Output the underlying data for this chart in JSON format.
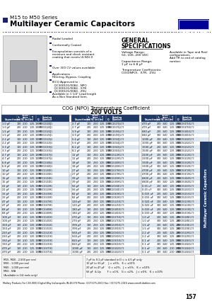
{
  "title_series": "M15 to M50 Series",
  "title_main": "Multilayer Ceramic Capacitors",
  "brand": "MALLORY",
  "bg_color": "#ffffff",
  "header_blue": "#000080",
  "light_blue_row": "#dce6f1",
  "table_header_blue": "#1f3864",
  "section_title": "COG (NPO) Temperature Coefficient",
  "section_subtitle": "200 VOLTS",
  "bullet_color": "#1f1f5f",
  "page_num": "157",
  "side_tab": "Multilayer Ceramic Capacitors",
  "footer_company": "Mallory Products For C38-9001 Digital Way Indianapolis IN 46278 Phone: (317)275-2000 Fax: (317)275-2010 www.cornell-dublier.com",
  "footer_notes_left": [
    "M15, M20 - 2,500 per reel",
    "M30 - 1,000 per reel",
    "M40 - 1,000 per reel",
    "M50 - N/A",
    "(Available in 1/4 reels only)"
  ],
  "footer_notes_right": [
    "7 pF to 9.1 pF standard in D = ± 4.5 pF only",
    "10 pF to 33 pF     J = ±5%,   K = ±10%",
    "20 pF to 47 pF     G = ±2%,   J = ±5%,   K = ±10%",
    "56 pF  & Up        F = ±1%,   G = ±2%,   J = ±5%,   K = ±10%"
  ],
  "col_headers": [
    "Capacitance",
    "L\n(m)",
    "Thickness\nW\n(m)",
    "T\n(m)",
    "Q",
    "Catalog\nNumber"
  ],
  "group1_data": [
    [
      "1.0 pF",
      "100",
      "2.10",
      "1.25",
      "1000",
      "M15C1G100J1"
    ],
    [
      "1.0 pF",
      "200",
      "2.10",
      "1.25",
      "1000",
      "M20C1G100J1"
    ],
    [
      "1.5 pF",
      "100",
      "2.10",
      "1.25",
      "1000",
      "M15C1G150J1"
    ],
    [
      "1.5 pF",
      "200",
      "2.10",
      "1.25",
      "1000",
      "M20C1G150J1"
    ],
    [
      "2.2 pF",
      "100",
      "2.10",
      "1.25",
      "1000",
      "M15C1G220J1"
    ],
    [
      "2.2 pF",
      "200",
      "2.10",
      "1.25",
      "1000",
      "M20C1G220J1"
    ],
    [
      "3.3 pF",
      "100",
      "2.10",
      "1.25",
      "1000",
      "M15C1G330J1"
    ],
    [
      "3.3 pF",
      "200",
      "2.10",
      "1.25",
      "1000",
      "M20C1G330J1"
    ],
    [
      "4.7 pF",
      "100",
      "2.10",
      "1.25",
      "1000",
      "M15C1G470J1"
    ],
    [
      "4.7 pF",
      "200",
      "2.10",
      "1.25",
      "1000",
      "M20C1G470J1"
    ],
    [
      "6.8 pF",
      "100",
      "2.10",
      "1.25",
      "1000",
      "M15C1G680J1"
    ],
    [
      "6.8 pF",
      "200",
      "2.10",
      "1.25",
      "1000",
      "M20C1G680J1"
    ],
    [
      "10 pF",
      "100",
      "2.10",
      "1.25",
      "1000",
      "M15C1G100K1"
    ],
    [
      "10 pF",
      "200",
      "2.10",
      "1.25",
      "1000",
      "M20C1G100K1"
    ],
    [
      "15 pF",
      "100",
      "2.10",
      "1.25",
      "1000",
      "M15C1G150K1"
    ],
    [
      "15 pF",
      "200",
      "2.10",
      "1.25",
      "1000",
      "M20C1G150K1"
    ],
    [
      "22 pF",
      "100",
      "2.10",
      "1.25",
      "1000",
      "M15C1G220K1"
    ],
    [
      "22 pF",
      "200",
      "2.10",
      "1.25",
      "1000",
      "M20C1G220K1"
    ],
    [
      "33 pF",
      "100",
      "2.10",
      "1.25",
      "1000",
      "M15C1G330K1"
    ],
    [
      "33 pF",
      "200",
      "2.10",
      "1.25",
      "1000",
      "M20C1G330K1"
    ],
    [
      "47 pF",
      "100",
      "2.10",
      "1.25",
      "1000",
      "M15C1G470K1"
    ],
    [
      "47 pF",
      "200",
      "2.10",
      "1.25",
      "1000",
      "M20C1G470K1"
    ],
    [
      "68 pF",
      "100",
      "2.10",
      "1.25",
      "1000",
      "M15C1G680K1"
    ],
    [
      "68 pF",
      "200",
      "2.10",
      "1.25",
      "1000",
      "M20C1G680K1"
    ],
    [
      "100 pF",
      "100",
      "2.10",
      "1.25",
      "1000",
      "M15C1G101K1"
    ],
    [
      "100 pF",
      "200",
      "2.10",
      "1.25",
      "1000",
      "M20C1G101K1"
    ],
    [
      "150 pF",
      "100",
      "2.10",
      "1.25",
      "1000",
      "M15C1G151K1"
    ],
    [
      "150 pF",
      "200",
      "2.10",
      "1.25",
      "1000",
      "M20C1G151K1"
    ],
    [
      "220 pF",
      "100",
      "2.10",
      "1.25",
      "1000",
      "M15C1G221K1"
    ],
    [
      "220 pF",
      "200",
      "2.10",
      "1.25",
      "1000",
      "M20C1G221K1"
    ],
    [
      "330 pF",
      "100",
      "2.10",
      "1.25",
      "1000",
      "M15C1G331K1"
    ],
    [
      "330 pF",
      "200",
      "2.10",
      "1.25",
      "1000",
      "M20C1G331K1"
    ],
    [
      "470 pF",
      "100",
      "2.10",
      "1.25",
      "1000",
      "M15C1G471K1"
    ],
    [
      "470 pF",
      "200",
      "2.10",
      "1.25",
      "1000",
      "M20C1G471K1"
    ]
  ],
  "group2_data": [
    [
      "2.7 pF",
      "100",
      "2.50",
      "1.25",
      "1000",
      "M15C2G270J1-T3"
    ],
    [
      "2.7 pF",
      "200",
      "2.50",
      "1.25",
      "1000",
      "M20C2G270J1-T3"
    ],
    [
      "3.9 pF",
      "100",
      "2.50",
      "1.25",
      "1000",
      "M15C2G390J1-T3"
    ],
    [
      "3.9 pF",
      "200",
      "2.50",
      "1.25",
      "1000",
      "M20C2G390J1-T3"
    ],
    [
      "5.6 pF",
      "100",
      "2.50",
      "1.25",
      "1000",
      "M15C2G560J1-T3"
    ],
    [
      "5.6 pF",
      "200",
      "2.50",
      "1.25",
      "1000",
      "M20C2G560J1-T3"
    ],
    [
      "8.2 pF",
      "100",
      "2.50",
      "1.25",
      "1000",
      "M15C2G820J1-T3"
    ],
    [
      "8.2 pF",
      "200",
      "2.50",
      "1.25",
      "1000",
      "M20C2G820J1-T3"
    ],
    [
      "12 pF",
      "100",
      "2.50",
      "1.25",
      "1000",
      "M15C2G120K1-T3"
    ],
    [
      "12 pF",
      "200",
      "2.50",
      "1.25",
      "1000",
      "M20C2G120K1-T3"
    ],
    [
      "18 pF",
      "100",
      "2.50",
      "1.25",
      "1000",
      "M15C2G180K1-T3"
    ],
    [
      "18 pF",
      "200",
      "2.50",
      "1.25",
      "1000",
      "M20C2G180K1-T3"
    ],
    [
      "27 pF",
      "100",
      "2.50",
      "1.25",
      "1000",
      "M15C2G270K1-T3"
    ],
    [
      "27 pF",
      "200",
      "2.50",
      "1.25",
      "1000",
      "M20C2G270K1-T3"
    ],
    [
      "39 pF",
      "100",
      "2.50",
      "1.25",
      "1000",
      "M15C2G390K1-T3"
    ],
    [
      "39 pF",
      "200",
      "2.50",
      "1.25",
      "1000",
      "M20C2G390K1-T3"
    ],
    [
      "56 pF",
      "100",
      "2.50",
      "1.25",
      "1000",
      "M15C2G560K1-T3"
    ],
    [
      "56 pF",
      "200",
      "2.50",
      "1.25",
      "1000",
      "M20C2G560K1-T3"
    ],
    [
      "82 pF",
      "100",
      "2.50",
      "1.25",
      "1000",
      "M15C2G820K1-T3"
    ],
    [
      "82 pF",
      "200",
      "2.50",
      "1.25",
      "1000",
      "M20C2G820K1-T3"
    ],
    [
      "120 pF",
      "100",
      "2.50",
      "1.25",
      "1000",
      "M15C2G121K1-T3"
    ],
    [
      "120 pF",
      "200",
      "2.50",
      "1.25",
      "1000",
      "M20C2G121K1-T3"
    ],
    [
      "180 pF",
      "100",
      "2.50",
      "1.25",
      "1000",
      "M15C2G181K1-T3"
    ],
    [
      "180 pF",
      "200",
      "2.50",
      "1.25",
      "1000",
      "M20C2G181K1-T3"
    ],
    [
      "270 pF",
      "100",
      "2.50",
      "1.25",
      "1000",
      "M15C2G271K1-T3"
    ],
    [
      "270 pF",
      "200",
      "2.50",
      "1.25",
      "1000",
      "M20C2G271K1-T3"
    ],
    [
      "390 pF",
      "100",
      "2.50",
      "1.25",
      "1000",
      "M15C2G391K1-T3"
    ],
    [
      "390 pF",
      "200",
      "2.50",
      "1.25",
      "1000",
      "M20C2G391K1-T3"
    ],
    [
      "560 pF",
      "100",
      "2.50",
      "1.25",
      "1000",
      "M15C2G561K1-T3"
    ],
    [
      "560 pF",
      "200",
      "2.50",
      "1.25",
      "1000",
      "M20C2G561K1-T3"
    ],
    [
      "820 pF",
      "100",
      "2.50",
      "1.25",
      "1000",
      "M15C2G821K1-T3"
    ],
    [
      "820 pF",
      "200",
      "2.50",
      "1.25",
      "1000",
      "M20C2G821K1-T3"
    ],
    [
      "1000 pF",
      "100",
      "2.50",
      "1.25",
      "1000",
      "M15C2G102K1-T3"
    ],
    [
      "1000 pF",
      "200",
      "2.50",
      "1.25",
      "1000",
      "M20C2G102K1-T3"
    ]
  ],
  "group3_data": [
    [
      "470 pF",
      "200",
      "3.40",
      "1.25",
      "1000",
      "M20C3G471K1-T3"
    ],
    [
      "470 pF",
      "300",
      "3.40",
      "1.25",
      "1000",
      "M30C3G471K1-T3"
    ],
    [
      "680 pF",
      "200",
      "3.40",
      "1.25",
      "1000",
      "M20C3G681K1-T3"
    ],
    [
      "680 pF",
      "300",
      "3.40",
      "1.25",
      "1000",
      "M30C3G681K1-T3"
    ],
    [
      "1000 pF",
      "200",
      "3.40",
      "1.25",
      "1000",
      "M20C3G102K1-T3"
    ],
    [
      "1000 pF",
      "300",
      "3.40",
      "1.25",
      "1000",
      "M30C3G102K1-T3"
    ],
    [
      "1500 pF",
      "200",
      "3.40",
      "1.25",
      "1000",
      "M20C3G152K1-T3"
    ],
    [
      "1500 pF",
      "300",
      "3.40",
      "1.25",
      "1000",
      "M30C3G152K1-T3"
    ],
    [
      "2200 pF",
      "200",
      "3.40",
      "1.25",
      "1000",
      "M20C3G222K1-T3"
    ],
    [
      "2200 pF",
      "300",
      "3.40",
      "1.25",
      "1000",
      "M30C3G222K1-T3"
    ],
    [
      "3300 pF",
      "200",
      "3.40",
      "1.25",
      "1000",
      "M20C3G332K1-T3"
    ],
    [
      "3300 pF",
      "300",
      "3.40",
      "1.25",
      "1000",
      "M30C3G332K1-T3"
    ],
    [
      "4700 pF",
      "200",
      "3.40",
      "1.25",
      "1000",
      "M20C3G472K1-T3"
    ],
    [
      "4700 pF",
      "300",
      "3.40",
      "1.25",
      "1000",
      "M30C3G472K1-T3"
    ],
    [
      "6800 pF",
      "200",
      "3.40",
      "1.25",
      "1000",
      "M20C3G682K1-T3"
    ],
    [
      "6800 pF",
      "300",
      "3.40",
      "1.25",
      "1000",
      "M30C3G682K1-T3"
    ],
    [
      "0.01 uF",
      "200",
      "3.40",
      "1.25",
      "1000",
      "M20C3G103K1-T3"
    ],
    [
      "0.01 uF",
      "300",
      "3.40",
      "1.25",
      "1000",
      "M30C3G103K1-T3"
    ],
    [
      "0.015 uF",
      "200",
      "3.40",
      "1.25",
      "1000",
      "M20C3G153K1-T3"
    ],
    [
      "0.015 uF",
      "300",
      "3.40",
      "1.25",
      "1000",
      "M30C3G153K1-T3"
    ],
    [
      "0.022 uF",
      "200",
      "3.40",
      "1.25",
      "1000",
      "M20C3G223K1-T3"
    ],
    [
      "0.022 uF",
      "300",
      "3.40",
      "1.25",
      "1000",
      "M30C3G223K1-T3"
    ],
    [
      "0.033 uF",
      "200",
      "3.40",
      "1.25",
      "1000",
      "M20C3G333K1-T3"
    ],
    [
      "0.033 uF",
      "300",
      "3.40",
      "1.25",
      "1000",
      "M30C3G333K1-T3"
    ],
    [
      "1.0 uF",
      "200",
      "3.40",
      "1.25",
      "250",
      "M20C3G105K1-T3"
    ],
    [
      "1.0 uF",
      "300",
      "3.40",
      "1.25",
      "250",
      "M30C3G105K1-T3"
    ],
    [
      "1.5 uF",
      "200",
      "3.40",
      "1.25",
      "250",
      "M20C3G155K1-T3"
    ],
    [
      "1.5 uF",
      "300",
      "3.40",
      "1.25",
      "250",
      "M30C3G155K1-T3"
    ],
    [
      "2.2 uF",
      "200",
      "3.40",
      "1.25",
      "250",
      "M20C3G225K1-T3"
    ],
    [
      "2.2 uF",
      "300",
      "3.40",
      "1.25",
      "250",
      "M30C3G225K1-T3"
    ],
    [
      "0.1 uF",
      "200",
      "3.40",
      "1.25",
      "1000",
      "M20C3G104K1-T3"
    ],
    [
      "0.1 uF",
      "300",
      "3.40",
      "1.25",
      "1000",
      "M30C3G104K1-T3"
    ],
    [
      "0.1 uF",
      "200",
      "3.40",
      "2.10",
      "1000",
      "M20C3G104K2-T3"
    ],
    [
      "0.1 uF",
      "300",
      "3.40",
      "2.10",
      "1000",
      "M30C3G104K2-T3"
    ]
  ]
}
